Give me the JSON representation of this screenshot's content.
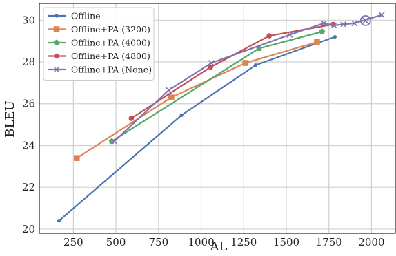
{
  "chart_data": {
    "type": "line",
    "title": "",
    "xlabel": "AL",
    "ylabel": "BLEU",
    "xlim": [
      50,
      2140
    ],
    "ylim": [
      19.8,
      30.8
    ],
    "xticks": [
      250,
      500,
      750,
      1000,
      1250,
      1500,
      1750,
      2000
    ],
    "yticks": [
      20,
      22,
      24,
      26,
      28,
      30
    ],
    "grid": true,
    "legend_position": "top-left",
    "series": [
      {
        "name": "Offline",
        "color": "#4c72b0",
        "marker": "dot",
        "x": [
          165,
          885,
          1320,
          1785
        ],
        "y": [
          20.4,
          25.45,
          27.85,
          29.2
        ]
      },
      {
        "name": "Offline+PA (3200)",
        "color": "#dd8452",
        "marker": "square",
        "x": [
          270,
          825,
          1260,
          1680
        ],
        "y": [
          23.4,
          26.3,
          27.95,
          28.95
        ]
      },
      {
        "name": "Offline+PA (4000)",
        "color": "#55a868",
        "marker": "pentagon",
        "x": [
          475,
          1340,
          1710
        ],
        "y": [
          24.2,
          28.65,
          29.45
        ]
      },
      {
        "name": "Offline+PA (4800)",
        "color": "#c44e52",
        "marker": "circle",
        "x": [
          590,
          1055,
          1400,
          1775
        ],
        "y": [
          25.3,
          27.75,
          29.25,
          29.8
        ]
      },
      {
        "name": "Offline+PA (None)",
        "color": "#8172b3",
        "marker": "x",
        "x": [
          490,
          810,
          1060,
          1520,
          1720,
          1780,
          1835,
          1900,
          2060
        ],
        "y": [
          24.2,
          26.65,
          27.95,
          29.3,
          29.85,
          29.75,
          29.8,
          29.85,
          30.25
        ]
      }
    ],
    "annotations": [
      {
        "type": "circled-point",
        "x": 1965,
        "y": 29.98,
        "color": "#8172b3"
      }
    ]
  }
}
